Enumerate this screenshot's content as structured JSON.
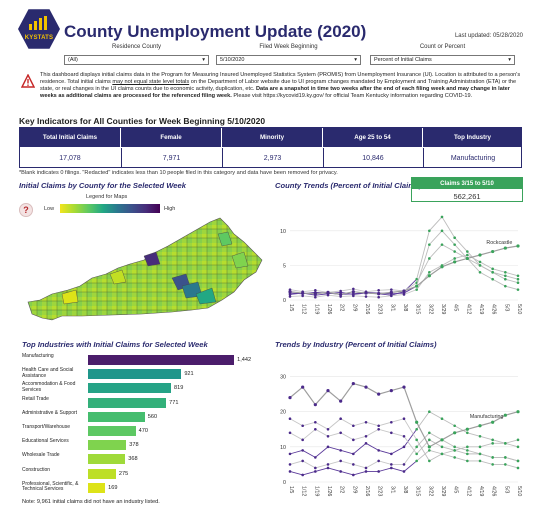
{
  "header": {
    "logo_text": "KYSTATS",
    "title": "County Unemployment Update (2020)",
    "last_updated": "Last updated: 05/28/2020"
  },
  "filters": [
    {
      "label": "Residence County",
      "value": "(All)"
    },
    {
      "label": "Filed Week Beginning",
      "value": "5/10/2020"
    },
    {
      "label": "Count or Percent",
      "value": "Percent of Initial Claims"
    }
  ],
  "disclaimer": {
    "p1": "This dashboard displays initial claims data in the Program for Measuring Insured Unemployed Statistics System (PROMIS) from Unemployment Insurance (UI). Location is attributed to a person's residence. Total initial claims ",
    "p1_underline": "may not equal state level totals",
    "p2": " on the Department of Labor website due to UI program changes mandated by Employment and Training Administration (ETA) or the state, or real changes in the UI claims counts due to economic activity, duplication, etc. ",
    "p2_bold": "Data are a snapshot in time two weeks after the end of each filing week and may change in later weeks as additional claims are processed for the referenced filing week.",
    "p3": " Please visit https://kycovid19.ky.gov/ for official Team Kentucky information regarding COVID-19."
  },
  "kpi": {
    "title": "Key Indicators for All Counties for Week Beginning 5/10/2020",
    "columns": [
      {
        "label": "Total Initial Claims",
        "value": "17,078"
      },
      {
        "label": "Female",
        "value": "7,971"
      },
      {
        "label": "Minority",
        "value": "2,973"
      },
      {
        "label": "Age 25 to 54",
        "value": "10,846"
      },
      {
        "label": "Top Industry",
        "value": "Manufacturing"
      }
    ],
    "note": "*Blank indicates 0 filings. \"Redacted\" indicates less than 10 people filed in this category and data have been removed for privacy."
  },
  "map": {
    "title": "Initial Claims by County for the Selected Week",
    "help": "?",
    "legend_title": "Legend for Maps",
    "low": "Low",
    "high": "High"
  },
  "county_trends": {
    "title": "County Trends (Percent of Initial Claims)",
    "claims_label": "Claims 3/15 to 5/10",
    "claims_value": "562,261",
    "callout": "Rockcastle"
  },
  "industries": {
    "title": "Top Industries with Initial Claims for Selected Week",
    "note": "Note: 9,961 initial claims did not have an industry listed."
  },
  "industry_trends": {
    "title": "Trends by Industry (Percent of Initial Claims)",
    "callout": "Manufacturing"
  },
  "x_ticks": [
    "1/5",
    "1/12",
    "1/19",
    "1/26",
    "2/2",
    "2/9",
    "2/16",
    "2/23",
    "3/1",
    "3/8",
    "3/15",
    "3/22",
    "3/29",
    "4/5",
    "4/12",
    "4/19",
    "4/26",
    "5/3",
    "5/10"
  ],
  "colors": {
    "navy": "#2a2a6e",
    "green": "#3aa35b",
    "purple": "#4b2a8a",
    "gray": "#bdbdbd"
  },
  "chart_data": [
    {
      "type": "bar",
      "title": "Top Industries with Initial Claims for Selected Week",
      "categories": [
        "Manufacturing",
        "Health Care and Social Assistance",
        "Accommodation & Food Services",
        "Retail Trade",
        "Administrative & Support",
        "Transport/Warehouse",
        "Educational Services",
        "Wholesale Trade",
        "Construction",
        "Professional, Scientific, & Technical Services"
      ],
      "values": [
        1442,
        921,
        819,
        771,
        560,
        470,
        378,
        368,
        275,
        169
      ],
      "colors": [
        "#4b1d6b",
        "#1f968b",
        "#25a386",
        "#33b07a",
        "#45bd6e",
        "#5dc863",
        "#7fd34e",
        "#9fda3a",
        "#bddf26",
        "#dde318"
      ]
    },
    {
      "type": "line",
      "title": "County Trends (Percent of Initial Claims)",
      "x": [
        "1/5",
        "1/12",
        "1/19",
        "1/26",
        "2/2",
        "2/9",
        "2/16",
        "2/23",
        "3/1",
        "3/8",
        "3/15",
        "3/22",
        "3/29",
        "4/5",
        "4/12",
        "4/19",
        "4/26",
        "5/3",
        "5/10"
      ],
      "ylim": [
        0,
        13
      ],
      "yticks": [
        0,
        5,
        10
      ],
      "series": [
        {
          "name": "Rockcastle",
          "values": [
            1.2,
            1.0,
            0.9,
            1.1,
            0.8,
            1.2,
            1.0,
            0.9,
            1.1,
            1.3,
            2.0,
            3.5,
            4.8,
            5.5,
            6.0,
            6.5,
            7.0,
            7.5,
            7.8
          ]
        }
      ]
    },
    {
      "type": "line",
      "title": "Trends by Industry (Percent of Initial Claims)",
      "x": [
        "1/5",
        "1/12",
        "1/19",
        "1/26",
        "2/2",
        "2/9",
        "2/16",
        "2/23",
        "3/1",
        "3/8",
        "3/15",
        "3/22",
        "3/29",
        "4/5",
        "4/12",
        "4/19",
        "4/26",
        "5/3",
        "5/10"
      ],
      "ylim": [
        0,
        33
      ],
      "yticks": [
        0,
        10,
        20,
        30
      ],
      "series": [
        {
          "name": "Manufacturing",
          "values": [
            24,
            27,
            22,
            26,
            23,
            28,
            27,
            25,
            26,
            27,
            17,
            10,
            12,
            14,
            15,
            16,
            17,
            19,
            20
          ]
        }
      ]
    }
  ]
}
